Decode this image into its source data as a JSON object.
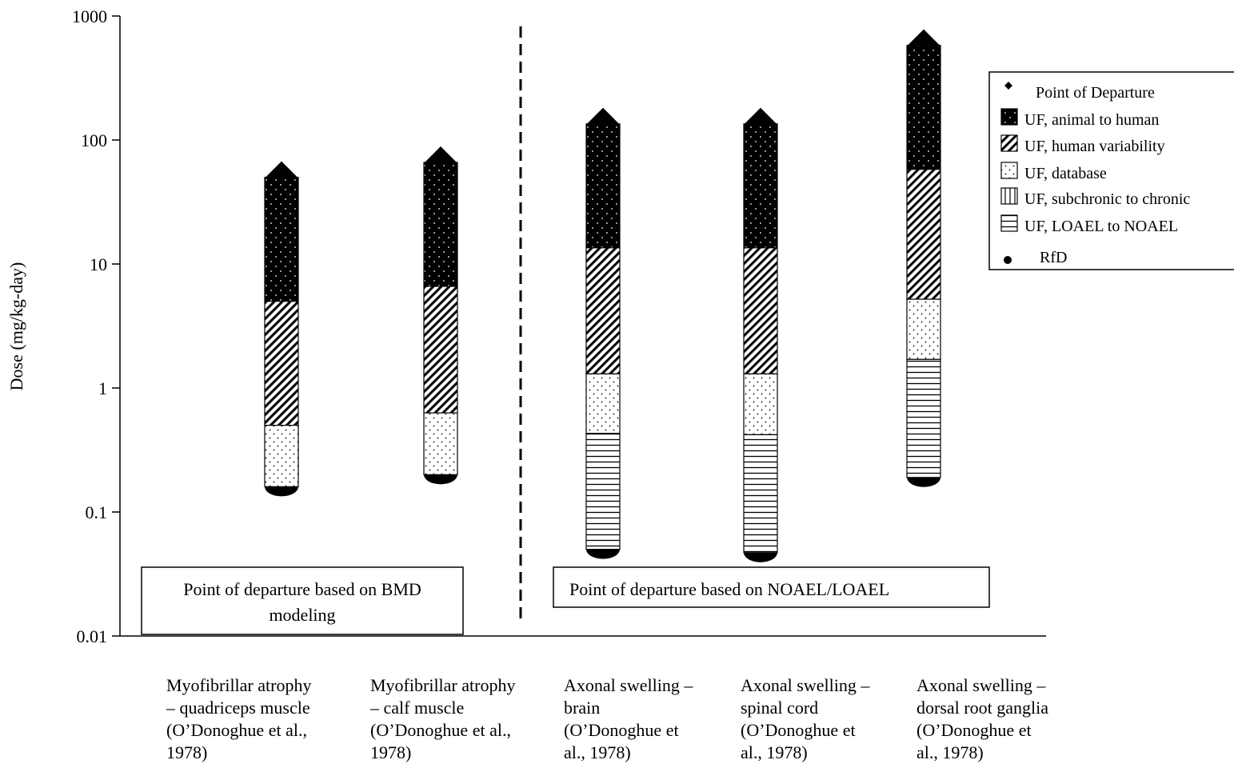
{
  "chart_data": {
    "type": "bar",
    "subtype": "stacked-range-log",
    "scale": "log",
    "ylabel": "Dose (mg/kg-day)",
    "ylim": [
      0.01,
      1000
    ],
    "yticks": [
      "1000",
      "100",
      "10",
      "1",
      "0.1",
      "0.01"
    ],
    "grid": false,
    "legend_position": "top-right",
    "categories": [
      [
        "Myofibrillar atrophy",
        "– quadriceps muscle",
        "(O’Donoghue et al.,",
        "1978)"
      ],
      [
        "Myofibrillar atrophy",
        "– calf muscle",
        "(O’Donoghue et al.,",
        "1978)"
      ],
      [
        "Axonal swelling –",
        "brain",
        "(O’Donoghue et",
        "al., 1978)"
      ],
      [
        "Axonal swelling –",
        "spinal cord",
        "(O’Donoghue et",
        "al., 1978)"
      ],
      [
        "Axonal swelling –",
        "dorsal root ganglia",
        "(O’Donoghue et",
        "al., 1978)"
      ]
    ],
    "legend": [
      {
        "key": "pod",
        "label": "Point of Departure"
      },
      {
        "key": "animal",
        "label": "UF, animal to human"
      },
      {
        "key": "human",
        "label": "UF, human variability"
      },
      {
        "key": "database",
        "label": "UF, database"
      },
      {
        "key": "subchronic",
        "label": "UF, subchronic to chronic"
      },
      {
        "key": "loael",
        "label": "UF, LOAEL to NOAEL"
      },
      {
        "key": "rfd",
        "label": "RfD"
      }
    ],
    "bars": [
      {
        "pod": 50,
        "rfd": 0.16,
        "segments": [
          {
            "key": "animal",
            "from": 5,
            "to": 50
          },
          {
            "key": "human",
            "from": 0.5,
            "to": 5
          },
          {
            "key": "database",
            "from": 0.16,
            "to": 0.5
          }
        ]
      },
      {
        "pod": 66,
        "rfd": 0.2,
        "segments": [
          {
            "key": "animal",
            "from": 6.6,
            "to": 66
          },
          {
            "key": "human",
            "from": 0.63,
            "to": 6.6
          },
          {
            "key": "database",
            "from": 0.2,
            "to": 0.63
          }
        ]
      },
      {
        "pod": 135,
        "rfd": 0.05,
        "segments": [
          {
            "key": "animal",
            "from": 13.5,
            "to": 135
          },
          {
            "key": "human",
            "from": 1.3,
            "to": 13.5
          },
          {
            "key": "database",
            "from": 0.43,
            "to": 1.3
          },
          {
            "key": "loael",
            "from": 0.05,
            "to": 0.43
          }
        ]
      },
      {
        "pod": 135,
        "rfd": 0.047,
        "segments": [
          {
            "key": "animal",
            "from": 13.5,
            "to": 135
          },
          {
            "key": "human",
            "from": 1.3,
            "to": 13.5
          },
          {
            "key": "database",
            "from": 0.42,
            "to": 1.3
          },
          {
            "key": "loael",
            "from": 0.047,
            "to": 0.42
          }
        ]
      },
      {
        "pod": 580,
        "rfd": 0.19,
        "segments": [
          {
            "key": "animal",
            "from": 58,
            "to": 580
          },
          {
            "key": "human",
            "from": 5.2,
            "to": 58
          },
          {
            "key": "database",
            "from": 1.7,
            "to": 5.2
          },
          {
            "key": "loael",
            "from": 0.19,
            "to": 1.7
          }
        ]
      }
    ],
    "annotations": [
      {
        "lines": [
          "Point of departure based on BMD",
          "modeling"
        ]
      },
      {
        "lines": [
          "Point of departure based on NOAEL/LOAEL"
        ]
      }
    ]
  }
}
